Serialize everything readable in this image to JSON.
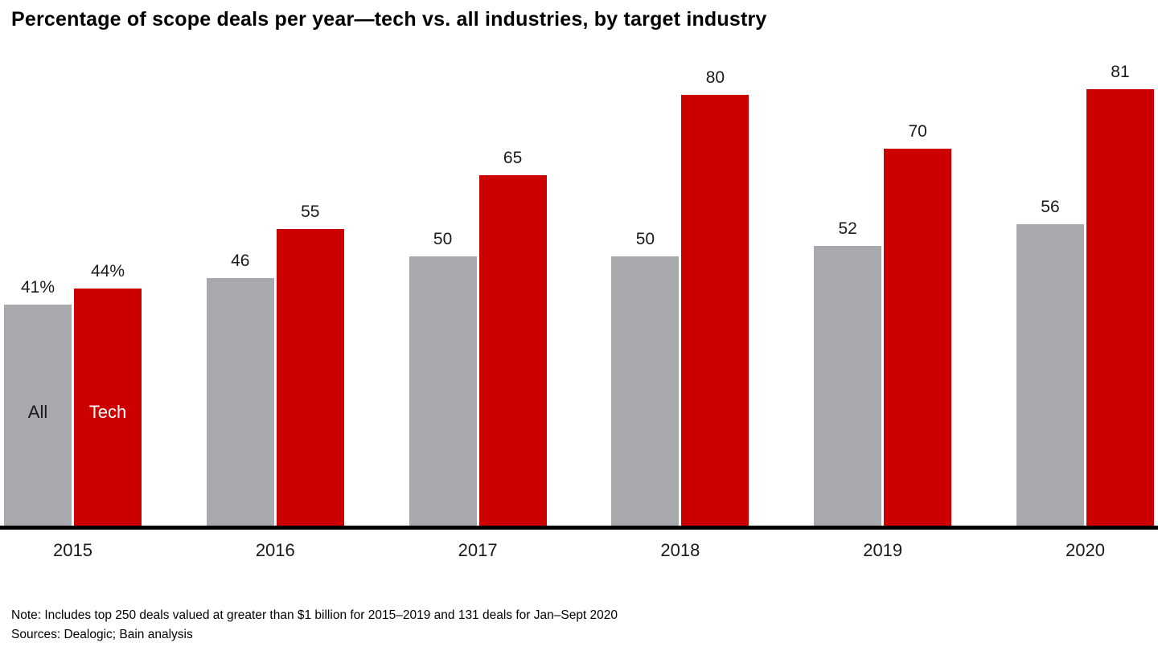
{
  "chart_data": {
    "type": "bar",
    "title": "Percentage of scope deals per year—tech vs. all industries, by target industry",
    "categories": [
      "2015",
      "2016",
      "2017",
      "2018",
      "2019",
      "2020"
    ],
    "series": [
      {
        "name": "All",
        "color": "#a7a9ac",
        "values": [
          41,
          46,
          50,
          50,
          52,
          56
        ],
        "labels": [
          "41%",
          "46",
          "50",
          "50",
          "52",
          "56"
        ],
        "name_label_color": "#1a1a1a"
      },
      {
        "name": "Tech",
        "color": "#cc0000",
        "values": [
          44,
          55,
          65,
          80,
          70,
          81
        ],
        "labels": [
          "44%",
          "55",
          "65",
          "80",
          "70",
          "81"
        ],
        "name_label_color": "#ffffff"
      }
    ],
    "ylim": [
      0,
      90
    ],
    "grid": false,
    "legend_position": "inside-first-bars",
    "xlabel": "",
    "ylabel": ""
  },
  "footer": {
    "note": "Note: Includes top 250 deals valued at greater than $1 billion for 2015–2019 and 131 deals for Jan–Sept 2020",
    "sources": "Sources: Dealogic; Bain analysis"
  }
}
